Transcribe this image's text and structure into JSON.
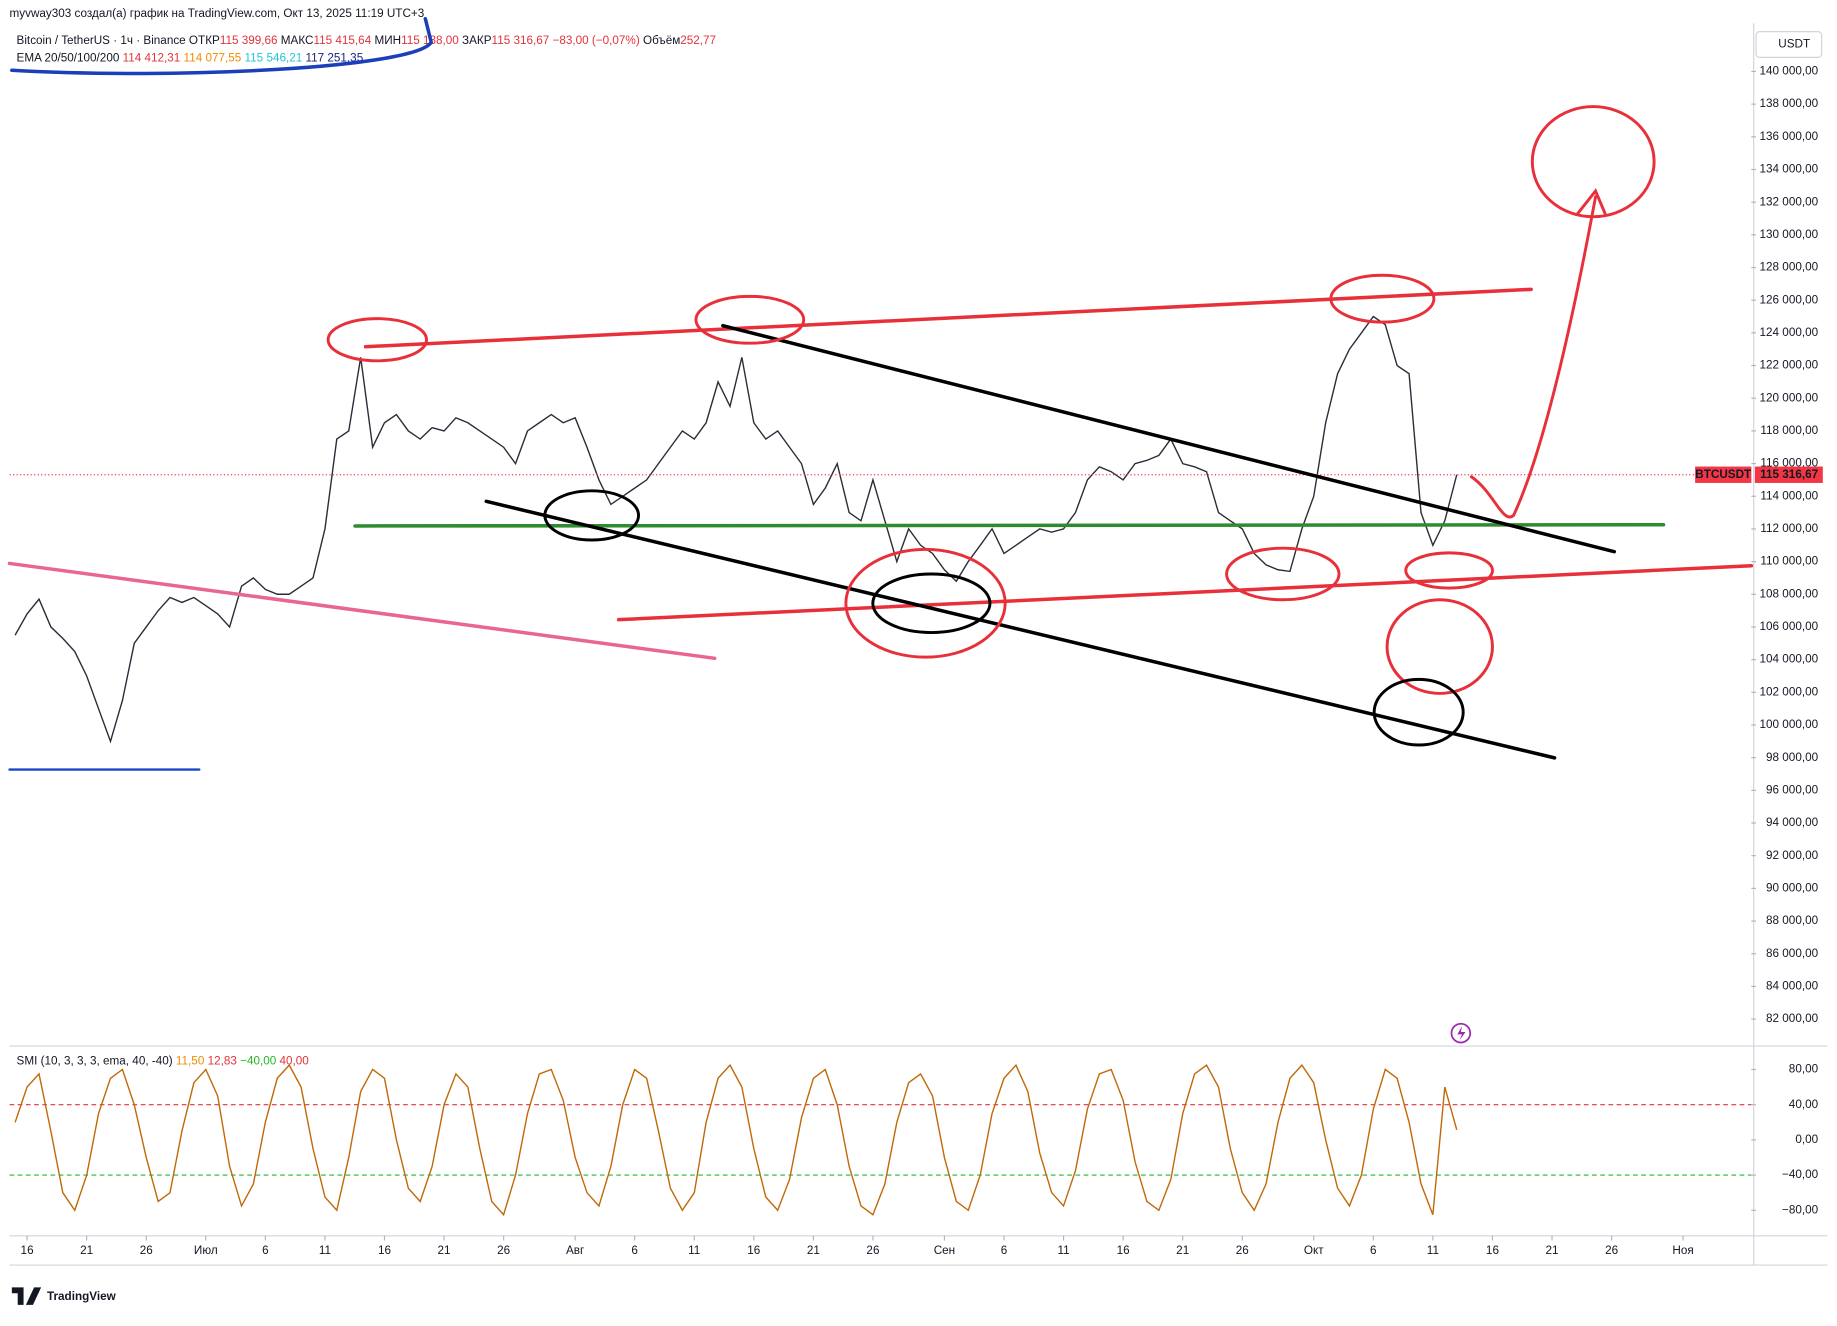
{
  "header": {
    "credit": "myvway303 создал(а) график на TradingView.com, Окт 13, 2025 11:19 UTC+3",
    "quote": [
      {
        "text": "Bitcoin / TetherUS · 1ч · Binance ",
        "color": "#131722"
      },
      {
        "text": "ОТКР",
        "color": "#131722"
      },
      {
        "text": "115 399,66 ",
        "color": "#e0343c"
      },
      {
        "text": "МАКС",
        "color": "#131722"
      },
      {
        "text": "115 415,64 ",
        "color": "#e0343c"
      },
      {
        "text": "МИН",
        "color": "#131722"
      },
      {
        "text": "115 138,00 ",
        "color": "#e0343c"
      },
      {
        "text": "ЗАКР",
        "color": "#131722"
      },
      {
        "text": "115 316,67 ",
        "color": "#e0343c"
      },
      {
        "text": "−83,00 (−0,07%) ",
        "color": "#e0343c"
      },
      {
        "text": "Объём",
        "color": "#131722"
      },
      {
        "text": "252,77",
        "color": "#e0343c"
      }
    ],
    "ema": [
      {
        "text": "EMA 20/50/100/200 ",
        "color": "#131722"
      },
      {
        "text": "114 412,31 ",
        "color": "#e0343c"
      },
      {
        "text": "114 077,55 ",
        "color": "#f08c00"
      },
      {
        "text": "115 546,21 ",
        "color": "#22c5d8"
      },
      {
        "text": "117 251,35",
        "color": "#1a237e"
      }
    ],
    "brand": "TradingView"
  },
  "chart_data": [
    {
      "type": "line",
      "currency": "USDT",
      "series": [
        {
          "name": "BTCUSDT",
          "color": "#2a2e39",
          "values": [
            105500,
            106800,
            107700,
            106000,
            105300,
            104500,
            103000,
            101000,
            99000,
            101500,
            105000,
            106000,
            107000,
            107800,
            107500,
            107800,
            107300,
            106800,
            106000,
            108500,
            109000,
            108300,
            108000,
            108000,
            108500,
            109000,
            112000,
            117500,
            118000,
            122500,
            117000,
            118500,
            119000,
            118000,
            117500,
            118200,
            118000,
            118800,
            118500,
            118000,
            117500,
            117000,
            116000,
            118000,
            118500,
            119000,
            118500,
            118800,
            117000,
            115000,
            113500,
            114000,
            114500,
            115000,
            116000,
            117000,
            118000,
            117500,
            118500,
            121000,
            119500,
            122500,
            118500,
            117500,
            118000,
            117000,
            116000,
            113500,
            114500,
            116000,
            113000,
            112500,
            115000,
            112500,
            110000,
            112000,
            111000,
            110500,
            109500,
            108800,
            110000,
            111000,
            112000,
            110500,
            111000,
            111500,
            112000,
            111800,
            112000,
            113000,
            115000,
            115800,
            115500,
            115000,
            116000,
            116200,
            116500,
            117500,
            116000,
            115800,
            115500,
            113000,
            112500,
            112000,
            110500,
            109800,
            109500,
            109400,
            112000,
            114000,
            118500,
            121500,
            123000,
            124000,
            125000,
            124500,
            122000,
            121500,
            113000,
            111000,
            112500,
            115316.67
          ]
        }
      ],
      "x": [
        -1,
        0,
        1,
        2,
        3,
        4,
        5,
        6,
        7,
        8,
        9,
        10,
        11,
        12,
        13,
        14,
        15,
        16,
        17,
        18,
        19,
        20,
        21,
        22,
        23,
        24,
        25,
        26,
        27,
        28,
        29,
        30,
        31,
        32,
        33,
        34,
        35,
        36,
        37,
        38,
        39,
        40,
        41,
        42,
        43,
        44,
        45,
        46,
        47,
        48,
        49,
        50,
        51,
        52,
        53,
        54,
        55,
        56,
        57,
        58,
        59,
        60,
        61,
        62,
        63,
        64,
        65,
        66,
        67,
        68,
        69,
        70,
        71,
        72,
        73,
        74,
        75,
        76,
        77,
        78,
        79,
        80,
        81,
        82,
        83,
        84,
        85,
        86,
        87,
        88,
        89,
        90,
        91,
        92,
        93,
        94,
        95,
        96,
        97,
        98,
        99,
        100,
        101,
        102,
        103,
        104,
        105,
        106,
        107,
        108,
        109,
        110,
        111,
        112,
        113,
        114,
        115,
        116,
        117,
        118,
        119,
        120
      ],
      "last_price": {
        "value": 115316.67,
        "label": "115 316,67"
      },
      "last_color": "#f23645",
      "xlim": [
        -1.475,
        144.73
      ],
      "xticks": [
        {
          "value": 0,
          "label": "16"
        },
        {
          "value": 5,
          "label": "21"
        },
        {
          "value": 10,
          "label": "26"
        },
        {
          "value": 15,
          "label": "Июл"
        },
        {
          "value": 20,
          "label": "6"
        },
        {
          "value": 25,
          "label": "11"
        },
        {
          "value": 30,
          "label": "16"
        },
        {
          "value": 35,
          "label": "21"
        },
        {
          "value": 40,
          "label": "26"
        },
        {
          "value": 46,
          "label": "Авг"
        },
        {
          "value": 51,
          "label": "6"
        },
        {
          "value": 56,
          "label": "11"
        },
        {
          "value": 61,
          "label": "16"
        },
        {
          "value": 66,
          "label": "21"
        },
        {
          "value": 71,
          "label": "26"
        },
        {
          "value": 77,
          "label": "Сен"
        },
        {
          "value": 82,
          "label": "6"
        },
        {
          "value": 87,
          "label": "11"
        },
        {
          "value": 92,
          "label": "16"
        },
        {
          "value": 97,
          "label": "21"
        },
        {
          "value": 102,
          "label": "26"
        },
        {
          "value": 108,
          "label": "Окт"
        },
        {
          "value": 113,
          "label": "6"
        },
        {
          "value": 118,
          "label": "11"
        },
        {
          "value": 123,
          "label": "16"
        },
        {
          "value": 128,
          "label": "21"
        },
        {
          "value": 133,
          "label": "26"
        },
        {
          "value": 139,
          "label": "Ноя"
        }
      ],
      "ylim": [
        80350,
        142940
      ],
      "yticks": [
        {
          "value": 82000,
          "label": "82 000,00"
        },
        {
          "value": 84000,
          "label": "84 000,00"
        },
        {
          "value": 86000,
          "label": "86 000,00"
        },
        {
          "value": 88000,
          "label": "88 000,00"
        },
        {
          "value": 90000,
          "label": "90 000,00"
        },
        {
          "value": 92000,
          "label": "92 000,00"
        },
        {
          "value": 94000,
          "label": "94 000,00"
        },
        {
          "value": 96000,
          "label": "96 000,00"
        },
        {
          "value": 98000,
          "label": "98 000,00"
        },
        {
          "value": 100000,
          "label": "100 000,00"
        },
        {
          "value": 102000,
          "label": "102 000,00"
        },
        {
          "value": 104000,
          "label": "104 000,00"
        },
        {
          "value": 106000,
          "label": "106 000,00"
        },
        {
          "value": 108000,
          "label": "108 000,00"
        },
        {
          "value": 110000,
          "label": "110 000,00"
        },
        {
          "value": 112000,
          "label": "112 000,00"
        },
        {
          "value": 114000,
          "label": "114 000,00"
        },
        {
          "value": 116000,
          "label": "116 000,00"
        },
        {
          "value": 118000,
          "label": "118 000,00"
        },
        {
          "value": 120000,
          "label": "120 000,00"
        },
        {
          "value": 122000,
          "label": "122 000,00"
        },
        {
          "value": 124000,
          "label": "124 000,00"
        },
        {
          "value": 126000,
          "label": "126 000,00"
        },
        {
          "value": 128000,
          "label": "128 000,00"
        },
        {
          "value": 130000,
          "label": "130 000,00"
        },
        {
          "value": 132000,
          "label": "132 000,00"
        },
        {
          "value": 134000,
          "label": "134 000,00"
        },
        {
          "value": 136000,
          "label": "136 000,00"
        },
        {
          "value": 138000,
          "label": "138 000,00"
        },
        {
          "value": 140000,
          "label": "140 000,00"
        }
      ]
    },
    {
      "type": "line",
      "title": "SMI (10, 3, 3, 3, ema, 40, -40)",
      "legend": [
        {
          "text": " 11,50 ",
          "color": "#f08c00"
        },
        {
          "text": "12,83 ",
          "color": "#e0343c"
        },
        {
          "text": "−40,00 ",
          "color": "#22b822"
        },
        {
          "text": "40,00",
          "color": "#e0343c"
        }
      ],
      "color": "#c0690a",
      "x": [
        -1,
        0,
        1,
        2,
        3,
        4,
        5,
        6,
        7,
        8,
        9,
        10,
        11,
        12,
        13,
        14,
        15,
        16,
        17,
        18,
        19,
        20,
        21,
        22,
        23,
        24,
        25,
        26,
        27,
        28,
        29,
        30,
        31,
        32,
        33,
        34,
        35,
        36,
        37,
        38,
        39,
        40,
        41,
        42,
        43,
        44,
        45,
        46,
        47,
        48,
        49,
        50,
        51,
        52,
        53,
        54,
        55,
        56,
        57,
        58,
        59,
        60,
        61,
        62,
        63,
        64,
        65,
        66,
        67,
        68,
        69,
        70,
        71,
        72,
        73,
        74,
        75,
        76,
        77,
        78,
        79,
        80,
        81,
        82,
        83,
        84,
        85,
        86,
        87,
        88,
        89,
        90,
        91,
        92,
        93,
        94,
        95,
        96,
        97,
        98,
        99,
        100,
        101,
        102,
        103,
        104,
        105,
        106,
        107,
        108,
        109,
        110,
        111,
        112,
        113,
        114,
        115,
        116,
        117,
        118,
        119,
        120
      ],
      "values": [
        20,
        60,
        75,
        10,
        -60,
        -80,
        -40,
        30,
        70,
        80,
        40,
        -20,
        -70,
        -60,
        10,
        65,
        80,
        50,
        -30,
        -75,
        -50,
        20,
        70,
        85,
        60,
        -10,
        -65,
        -80,
        -20,
        55,
        80,
        70,
        0,
        -55,
        -70,
        -30,
        40,
        75,
        60,
        -10,
        -70,
        -85,
        -40,
        30,
        75,
        80,
        45,
        -20,
        -60,
        -75,
        -30,
        40,
        80,
        70,
        10,
        -55,
        -80,
        -60,
        20,
        70,
        85,
        60,
        -10,
        -65,
        -80,
        -45,
        25,
        70,
        80,
        40,
        -30,
        -75,
        -85,
        -50,
        20,
        65,
        75,
        50,
        -20,
        -70,
        -80,
        -40,
        30,
        70,
        85,
        55,
        -15,
        -60,
        -75,
        -35,
        35,
        75,
        80,
        45,
        -25,
        -70,
        -80,
        -45,
        30,
        75,
        85,
        60,
        -10,
        -60,
        -80,
        -50,
        20,
        70,
        85,
        65,
        0,
        -55,
        -75,
        -40,
        35,
        80,
        70,
        20,
        -50,
        -85,
        60,
        11.5
      ],
      "levels": [
        {
          "value": 40,
          "color": "#e0343c"
        },
        {
          "value": -40,
          "color": "#22b822"
        }
      ],
      "ylim": [
        -109,
        100
      ],
      "yticks": [
        {
          "value": 80,
          "label": "80,00"
        },
        {
          "value": 40,
          "label": "40,00"
        },
        {
          "value": 0,
          "label": "0,00"
        },
        {
          "value": -40,
          "label": "−40,00"
        },
        {
          "value": -80,
          "label": "−80,00"
        }
      ]
    }
  ]
}
